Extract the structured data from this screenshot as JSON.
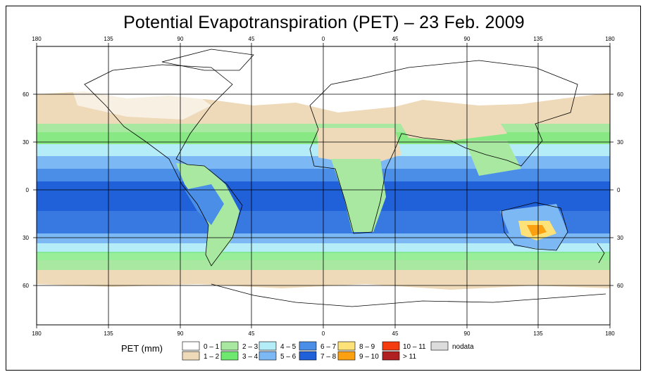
{
  "title": "Potential Evapotranspiration (PET) – 23 Feb. 2009",
  "axes": {
    "lon_ticks_top": [
      "180",
      "135",
      "90",
      "45",
      "0",
      "45",
      "90",
      "135",
      "180"
    ],
    "lon_ticks_bottom": [
      "180",
      "135",
      "90",
      "45",
      "0",
      "45",
      "90",
      "135",
      "180"
    ],
    "lat_ticks_left": [
      "60",
      "30",
      "0",
      "30",
      "60"
    ],
    "lat_ticks_right": [
      "60",
      "30",
      "0",
      "30",
      "60"
    ]
  },
  "legend": {
    "unit_label": "PET (mm)",
    "items": [
      {
        "label": "0 – 1",
        "color": "#ffffff"
      },
      {
        "label": "1 – 2",
        "color": "#eed9b8"
      },
      {
        "label": "2 – 3",
        "color": "#a8e8a0"
      },
      {
        "label": "3 – 4",
        "color": "#6ee86e"
      },
      {
        "label": "4 – 5",
        "color": "#b4ecf8"
      },
      {
        "label": "5 – 6",
        "color": "#7cb8f4"
      },
      {
        "label": "6 – 7",
        "color": "#4a8ee8"
      },
      {
        "label": "7 – 8",
        "color": "#2060d8"
      },
      {
        "label": "8 – 9",
        "color": "#fde27a"
      },
      {
        "label": "9 – 10",
        "color": "#fba010"
      },
      {
        "label": "10 – 11",
        "color": "#f43c10"
      },
      {
        "label": "> 11",
        "color": "#b02020"
      },
      {
        "label": "nodata",
        "color": "#dcdcdc"
      }
    ]
  }
}
